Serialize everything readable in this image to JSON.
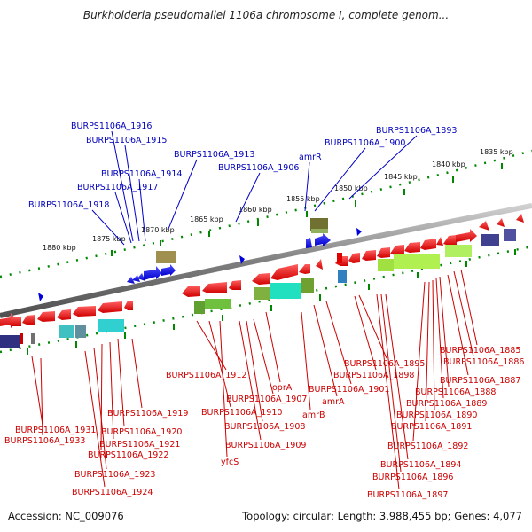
{
  "title": "Burkholderia pseudomallei 1106a chromosome I, complete genom...",
  "footer": {
    "accession": "Accession: NC_009076",
    "summary": "Topology: circular; Length: 3,988,455 bp; Genes: 4,077"
  },
  "colors": {
    "forward_gene": "#0000ee",
    "reverse_gene": "#ee0000",
    "backbone": "#808080",
    "tick": "#008800",
    "label_blue": "#0000bb",
    "label_red": "#cc0000"
  },
  "scale_ticks": [
    {
      "kbp": 1835,
      "label": "1835 kbp"
    },
    {
      "kbp": 1840,
      "label": "1840 kbp"
    },
    {
      "kbp": 1845,
      "label": "1845 kbp"
    },
    {
      "kbp": 1850,
      "label": "1850 kbp"
    },
    {
      "kbp": 1855,
      "label": "1855 kbp"
    },
    {
      "kbp": 1860,
      "label": "1860 kbp"
    },
    {
      "kbp": 1865,
      "label": "1865 kbp"
    },
    {
      "kbp": 1870,
      "label": "1870 kbp"
    },
    {
      "kbp": 1875,
      "label": "1875 kbp"
    },
    {
      "kbp": 1880,
      "label": "1880 kbp"
    }
  ],
  "forward_labels": [
    "BURPS1106A_1916",
    "BURPS1106A_1915",
    "BURPS1106A_1913",
    "BURPS1106A_1914",
    "BURPS1106A_1917",
    "BURPS1106A_1918",
    "BURPS1106A_1906",
    "amrR",
    "BURPS1106A_1900",
    "BURPS1106A_1893"
  ],
  "reverse_labels": [
    "BURPS1106A_1885",
    "BURPS1106A_1886",
    "BURPS1106A_1895",
    "BURPS1106A_1898",
    "BURPS1106A_1887",
    "BURPS1106A_1912",
    "oprA",
    "BURPS1106A_1901",
    "BURPS1106A_1888",
    "BURPS1106A_1907",
    "amrA",
    "BURPS1106A_1889",
    "BURPS1106A_1910",
    "amrB",
    "BURPS1106A_1890",
    "BURPS1106A_1919",
    "BURPS1106A_1891",
    "BURPS1106A_1908",
    "BURPS1106A_1931",
    "BURPS1106A_1920",
    "BURPS1106A_1933",
    "BURPS1106A_1921",
    "BURPS1106A_1909",
    "BURPS1106A_1892",
    "BURPS1106A_1922",
    "yfcS",
    "BURPS1106A_1894",
    "BURPS1106A_1923",
    "BURPS1106A_1896",
    "BURPS1106A_1924",
    "BURPS1106A_1897"
  ]
}
